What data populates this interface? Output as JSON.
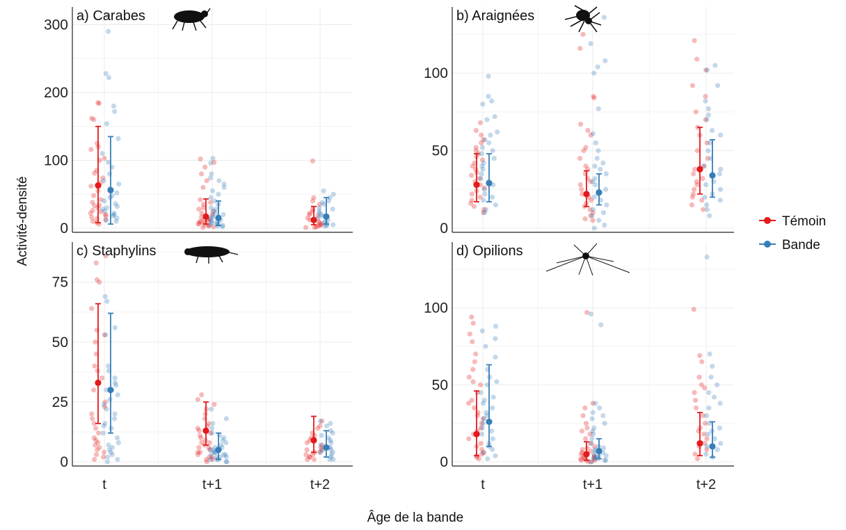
{
  "figure": {
    "ylabel": "Activité-densité",
    "xlabel": "Âge de la bande",
    "x_categories": [
      "t",
      "t+1",
      "t+2"
    ],
    "legend": [
      {
        "name": "Témoin",
        "color": "#e41a1c"
      },
      {
        "name": "Bande",
        "color": "#377eb8"
      }
    ],
    "legend_placement": "right"
  },
  "chart_data": [
    {
      "type": "scatter",
      "title": "a) Carabes",
      "icon": "beetle-icon",
      "categories": [
        "t",
        "t+1",
        "t+2"
      ],
      "ylim": [
        0,
        320
      ],
      "yticks": [
        0,
        100,
        200,
        300
      ],
      "grid": true,
      "series": [
        {
          "name": "Témoin",
          "mean": [
            63,
            17,
            12
          ],
          "lower": [
            8,
            6,
            5
          ],
          "upper": [
            150,
            43,
            32
          ],
          "points": [
            [
              185,
              184,
              162,
              160,
              125,
              120,
              116,
              103,
              100,
              85,
              81,
              74,
              67,
              62,
              55,
              48,
              42,
              38,
              34,
              30,
              26,
              22,
              20,
              18,
              16,
              14,
              12,
              10,
              8,
              6,
              24,
              33
            ],
            [
              102,
              97,
              90,
              80,
              70,
              60,
              42,
              38,
              35,
              30,
              28,
              25,
              22,
              20,
              18,
              16,
              14,
              13,
              12,
              11,
              10,
              9,
              8,
              7,
              6,
              5,
              4,
              3,
              2,
              1
            ],
            [
              99,
              45,
              40,
              35,
              28,
              25,
              22,
              20,
              18,
              15,
              12,
              10,
              8,
              6,
              5,
              4,
              3,
              2,
              1,
              1
            ]
          ]
        },
        {
          "name": "Bande",
          "mean": [
            56,
            15,
            17
          ],
          "lower": [
            6,
            4,
            6
          ],
          "upper": [
            135,
            40,
            45
          ],
          "points": [
            [
              313,
              290,
              228,
              222,
              180,
              172,
              154,
              132,
              110,
              97,
              90,
              80,
              70,
              65,
              58,
              52,
              48,
              45,
              40,
              36,
              32,
              30,
              28,
              25,
              22,
              20,
              18,
              15,
              12,
              10
            ],
            [
              103,
              96,
              80,
              74,
              70,
              65,
              60,
              55,
              50,
              45,
              40,
              35,
              30,
              28,
              25,
              22,
              20,
              18,
              16,
              14,
              12,
              10,
              9,
              8,
              7,
              6,
              5,
              4,
              3,
              2
            ],
            [
              55,
              50,
              45,
              40,
              38,
              35,
              30,
              28,
              25,
              22,
              20,
              18,
              15,
              12,
              10,
              8,
              6,
              5,
              4,
              3
            ]
          ]
        }
      ]
    },
    {
      "type": "scatter",
      "title": "b) Araignées",
      "icon": "spider-icon",
      "categories": [
        "t",
        "t+1",
        "t+2"
      ],
      "ylim": [
        0,
        140
      ],
      "yticks": [
        0,
        50,
        100
      ],
      "grid": true,
      "series": [
        {
          "name": "Témoin",
          "mean": [
            28,
            22,
            38
          ],
          "lower": [
            17,
            14,
            22
          ],
          "upper": [
            48,
            37,
            65
          ],
          "points": [
            [
              68,
              63,
              60,
              57,
              55,
              52,
              50,
              48,
              46,
              44,
              42,
              40,
              38,
              36,
              34,
              32,
              30,
              28,
              26,
              24,
              22,
              20,
              18,
              16,
              14,
              12,
              10
            ],
            [
              125,
              116,
              85,
              84,
              67,
              63,
              60,
              52,
              50,
              45,
              40,
              38,
              35,
              32,
              30,
              28,
              25,
              22,
              20,
              18,
              16,
              14,
              12,
              10,
              8,
              6,
              5
            ],
            [
              121,
              109,
              102,
              92,
              85,
              75,
              70,
              65,
              60,
              55,
              50,
              45,
              40,
              38,
              35,
              32,
              30,
              28,
              25,
              22,
              20,
              18,
              15,
              12
            ]
          ]
        },
        {
          "name": "Bande",
          "mean": [
            29,
            23,
            34
          ],
          "lower": [
            17,
            15,
            20
          ],
          "upper": [
            48,
            35,
            57
          ],
          "points": [
            [
              98,
              85,
              82,
              80,
              72,
              70,
              62,
              60,
              57,
              55,
              52,
              50,
              48,
              45,
              42,
              40,
              38,
              35,
              32,
              30,
              28,
              25,
              22,
              20,
              18,
              15,
              12,
              10
            ],
            [
              136,
              119,
              108,
              104,
              100,
              77,
              61,
              55,
              50,
              45,
              42,
              40,
              38,
              35,
              32,
              30,
              28,
              25,
              22,
              20,
              18,
              15,
              12,
              10,
              8,
              5,
              2,
              0
            ],
            [
              105,
              102,
              92,
              82,
              77,
              73,
              70,
              63,
              60,
              55,
              50,
              45,
              40,
              38,
              35,
              30,
              28,
              25,
              22,
              20,
              18,
              15,
              12,
              8
            ]
          ]
        }
      ]
    },
    {
      "type": "scatter",
      "title": "c) Staphylins",
      "icon": "rove-beetle-icon",
      "categories": [
        "t",
        "t+1",
        "t+2"
      ],
      "ylim": [
        0,
        90
      ],
      "yticks": [
        0,
        25,
        50,
        75
      ],
      "grid": true,
      "series": [
        {
          "name": "Témoin",
          "mean": [
            33,
            13,
            9
          ],
          "lower": [
            16,
            7,
            4
          ],
          "upper": [
            66,
            25,
            19
          ],
          "points": [
            [
              86,
              83,
              76,
              75,
              64,
              55,
              53,
              50,
              45,
              40,
              38,
              35,
              30,
              25,
              23,
              20,
              18,
              16,
              14,
              12,
              10,
              9,
              8,
              7,
              6,
              5,
              4,
              3,
              2,
              1
            ],
            [
              28,
              26,
              24,
              22,
              20,
              18,
              16,
              15,
              14,
              13,
              12,
              11,
              10,
              9,
              8,
              7,
              6,
              5,
              4,
              4,
              3,
              2,
              2,
              1,
              1,
              0,
              6,
              8
            ],
            [
              17,
              15,
              14,
              12,
              11,
              10,
              9,
              8,
              7,
              6,
              5,
              5,
              4,
              4,
              3,
              3,
              2,
              2,
              1,
              1
            ]
          ]
        },
        {
          "name": "Bande",
          "mean": [
            30,
            5,
            6
          ],
          "lower": [
            12,
            1,
            2
          ],
          "upper": [
            62,
            12,
            13
          ],
          "points": [
            [
              69,
              67,
              56,
              53,
              40,
              38,
              35,
              33,
              32,
              30,
              28,
              26,
              24,
              22,
              20,
              18,
              16,
              15,
              14,
              12,
              10,
              8,
              7,
              6,
              5,
              4,
              3,
              2,
              1,
              0
            ],
            [
              22,
              18,
              16,
              14,
              12,
              11,
              10,
              9,
              8,
              7,
              6,
              6,
              5,
              5,
              4,
              4,
              3,
              3,
              2,
              2,
              1,
              1,
              0,
              0,
              1,
              2,
              3,
              4
            ],
            [
              17,
              16,
              15,
              13,
              12,
              11,
              10,
              9,
              8,
              7,
              6,
              6,
              5,
              5,
              4,
              4,
              3,
              2,
              1,
              1
            ]
          ]
        }
      ]
    },
    {
      "type": "scatter",
      "title": "d) Opilions",
      "icon": "harvestman-icon",
      "categories": [
        "t",
        "t+1",
        "t+2"
      ],
      "ylim": [
        0,
        140
      ],
      "yticks": [
        0,
        50,
        100
      ],
      "grid": true,
      "series": [
        {
          "name": "Témoin",
          "mean": [
            18,
            5,
            12
          ],
          "lower": [
            4,
            1,
            4
          ],
          "upper": [
            46,
            13,
            32
          ],
          "points": [
            [
              94,
              90,
              83,
              78,
              70,
              65,
              60,
              55,
              52,
              50,
              45,
              40,
              38,
              35,
              32,
              30,
              28,
              25,
              22,
              20,
              18,
              15,
              12,
              10,
              8,
              6,
              5,
              4,
              3,
              2
            ],
            [
              97,
              38,
              35,
              30,
              25,
              22,
              20,
              18,
              15,
              12,
              10,
              9,
              8,
              7,
              6,
              5,
              4,
              4,
              3,
              3,
              2,
              2,
              1,
              1,
              0,
              0,
              1,
              2
            ],
            [
              99,
              69,
              65,
              55,
              50,
              48,
              45,
              40,
              35,
              30,
              25,
              22,
              20,
              18,
              15,
              12,
              10,
              8,
              5,
              2
            ]
          ]
        },
        {
          "name": "Bande",
          "mean": [
            26,
            7,
            10
          ],
          "lower": [
            10,
            2,
            3
          ],
          "upper": [
            63,
            15,
            26
          ],
          "points": [
            [
              88,
              85,
              80,
              75,
              68,
              60,
              55,
              52,
              50,
              45,
              42,
              40,
              38,
              35,
              32,
              30,
              28,
              25,
              22,
              20,
              18,
              15,
              12,
              10,
              8,
              6,
              4,
              2
            ],
            [
              96,
              89,
              38,
              35,
              32,
              30,
              28,
              25,
              22,
              20,
              18,
              15,
              12,
              10,
              9,
              8,
              7,
              6,
              5,
              4,
              3,
              2,
              1,
              0,
              1,
              2,
              3,
              4
            ],
            [
              133,
              70,
              62,
              55,
              50,
              45,
              42,
              38,
              35,
              30,
              25,
              22,
              20,
              18,
              15,
              12,
              10,
              8,
              5,
              3
            ]
          ]
        }
      ]
    }
  ]
}
